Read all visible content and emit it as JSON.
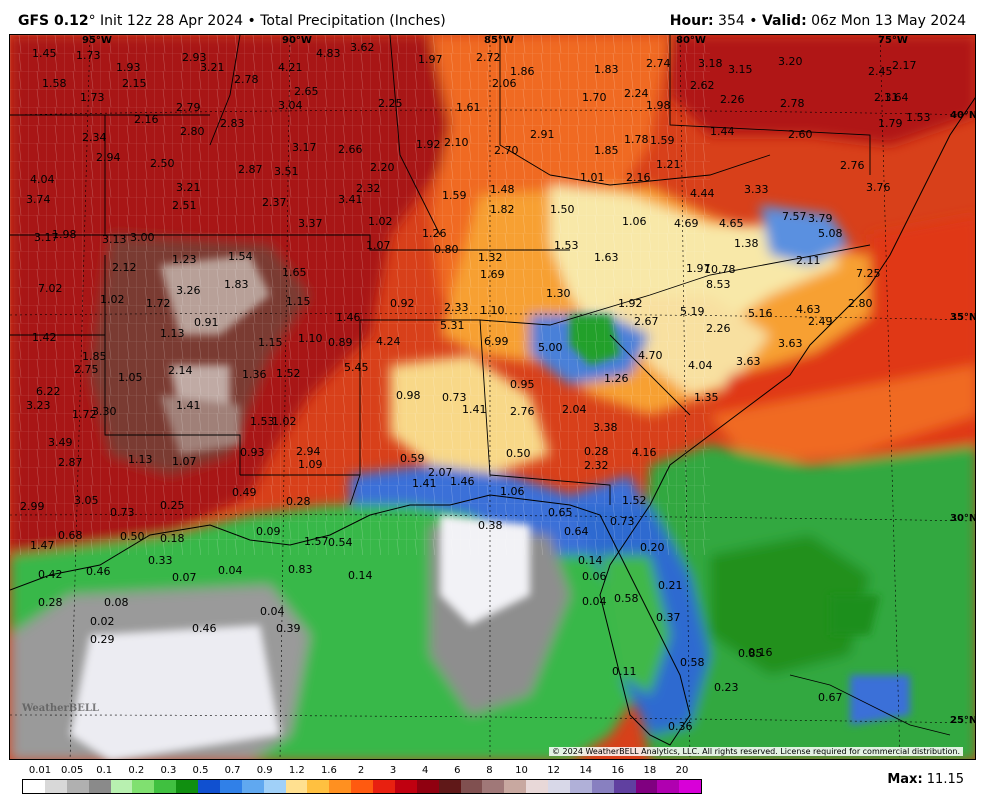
{
  "header": {
    "model": "GFS 0.12",
    "degree": "°",
    "init": "Init 12z 28 Apr 2024",
    "bullet": "•",
    "product": "Total Precipitation (Inches)",
    "hour_label": "Hour:",
    "hour_value": "354",
    "valid_label": "Valid:",
    "valid_value": "06z Mon 13 May 2024"
  },
  "map": {
    "longitude_labels": [
      "95°W",
      "90°W",
      "85°W",
      "80°W",
      "75°W"
    ],
    "latitude_labels": [
      "40°N",
      "35°N",
      "30°N",
      "25°N"
    ],
    "copyright": "© 2024 WeatherBELL Analytics, LLC. All rights reserved. License required for commercial distribution.",
    "logo_text": "WeatherBELL",
    "colors": {
      "very_high": "#7a4a40",
      "extreme": "#c8b4ae",
      "high": "#a81010",
      "moderate": "#d83a1a",
      "light_mod": "#f57a20",
      "light": "#fbd060",
      "pale": "#f8f0c0",
      "blue": "#3a70d8",
      "green": "#30b040",
      "gray": "#8e8e8e",
      "white": "#f4f4f8"
    },
    "values": [
      "1.45",
      "1.73",
      "1.58",
      "1.93",
      "2.15",
      "2.93",
      "3.21",
      "2.78",
      "4.21",
      "4.83",
      "3.62",
      "1.97",
      "2.72",
      "1.86",
      "2.06",
      "1.83",
      "2.74",
      "3.18",
      "3.15",
      "3.20",
      "2.45",
      "2.17",
      "1.73",
      "2.79",
      "2.16",
      "2.80",
      "2.83",
      "2.65",
      "3.04",
      "2.25",
      "1.61",
      "1.70",
      "2.24",
      "2.62",
      "2.26",
      "2.78",
      "1.98",
      "2.31",
      "1.64",
      "1.79",
      "1.53",
      "2.34",
      "2.94",
      "2.50",
      "2.87",
      "3.17",
      "2.66",
      "3.51",
      "2.20",
      "1.92",
      "2.10",
      "2.70",
      "2.91",
      "1.78",
      "1.59",
      "1.46",
      "1.85",
      "2.16",
      "1.21",
      "1.44",
      "2.60",
      "2.76",
      "4.04",
      "3.74",
      "3.21",
      "2.51",
      "2.37",
      "3.41",
      "2.32",
      "1.59",
      "1.48",
      "1.82",
      "1.50",
      "1.01",
      "4.44",
      "3.33",
      "3.79",
      "3.76",
      "3.17",
      "1.98",
      "3.13",
      "3.00",
      "3.37",
      "1.02",
      "1.26",
      "1.07",
      "0.80",
      "1.06",
      "4.69",
      "4.65",
      "7.57",
      "5.08",
      "2.12",
      "1.23",
      "1.54",
      "1.65",
      "1.32",
      "1.69",
      "1.53",
      "1.63",
      "1.38",
      "2.11",
      "1.97",
      "10.78",
      "8.53",
      "7.25",
      "7.02",
      "3.26",
      "1.83",
      "1.02",
      "1.72",
      "1.15",
      "0.92",
      "2.33",
      "1.10",
      "1.30",
      "1.92",
      "5.19",
      "5.16",
      "4.63",
      "2.80",
      "1.42",
      "0.91",
      "1.13",
      "1.46",
      "5.31",
      "2.67",
      "2.26",
      "2.49",
      "1.85",
      "1.15",
      "1.10",
      "0.89",
      "4.24",
      "6.99",
      "5.00",
      "3.63",
      "2.75",
      "2.14",
      "1.05",
      "1.36",
      "1.52",
      "5.45",
      "4.70",
      "4.04",
      "3.63",
      "6.22",
      "3.23",
      "3.30",
      "1.72",
      "1.41",
      "1.53",
      "1.02",
      "0.98",
      "0.73",
      "1.41",
      "0.95",
      "2.76",
      "2.04",
      "1.26",
      "1.35",
      "3.49",
      "2.94",
      "3.38",
      "4.16",
      "2.87",
      "1.13",
      "1.07",
      "0.93",
      "1.09",
      "0.59",
      "0.50",
      "0.28",
      "2.32",
      "2.07",
      "1.41",
      "1.46",
      "2.99",
      "3.05",
      "0.73",
      "0.25",
      "0.49",
      "0.28",
      "1.06",
      "1.52",
      "0.65",
      "0.73",
      "1.47",
      "0.68",
      "0.50",
      "0.18",
      "0.09",
      "1.57",
      "0.54",
      "0.38",
      "0.64",
      "0.20",
      "0.42",
      "0.46",
      "0.33",
      "0.07",
      "0.04",
      "0.83",
      "0.14",
      "0.14",
      "0.06",
      "0.21",
      "0.28",
      "0.08",
      "0.04",
      "0.04",
      "0.58",
      "0.02",
      "0.46",
      "0.39",
      "0.37",
      "0.29",
      "0.58",
      "0.85",
      "0.16",
      "0.11",
      "0.23",
      "0.67",
      "0.36"
    ]
  },
  "legend": {
    "ticks": [
      "0.01",
      "0.05",
      "0.1",
      "0.2",
      "0.3",
      "0.5",
      "0.7",
      "0.9",
      "1.2",
      "1.6",
      "2",
      "3",
      "4",
      "6",
      "8",
      "10",
      "12",
      "14",
      "16",
      "18",
      "20"
    ],
    "colors": [
      "#ffffff",
      "#d8d8d8",
      "#b0b0b0",
      "#8a8a8a",
      "#b8f0b0",
      "#80e070",
      "#40c040",
      "#108f10",
      "#1050d0",
      "#3080e8",
      "#60a8f0",
      "#a0d0f8",
      "#ffe090",
      "#ffc040",
      "#ff9020",
      "#ff5a10",
      "#e82010",
      "#c00010",
      "#900010",
      "#601818",
      "#805050",
      "#a07878",
      "#c8a8a0",
      "#e8d8d8",
      "#d8d8e8",
      "#b0b0d8",
      "#8880c0",
      "#6040a0",
      "#800080",
      "#b000b0",
      "#d800d8"
    ]
  },
  "max": {
    "label": "Max:",
    "value": "11.15"
  }
}
